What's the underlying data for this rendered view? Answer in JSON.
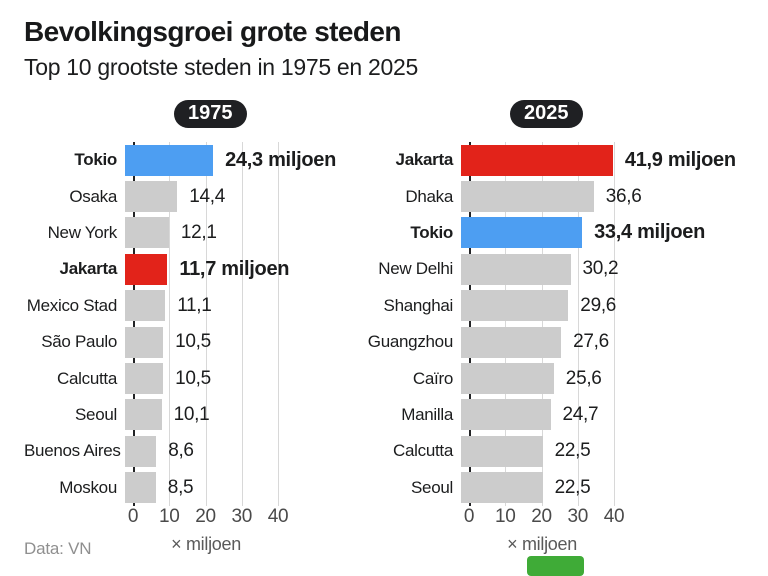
{
  "header": {
    "title": "Bevolkingsgroei grote steden",
    "subtitle": "Top 10 grootste steden in 1975 en 2025"
  },
  "footer": {
    "source": "Data: VN"
  },
  "colors": {
    "blue": "#4d9ef2",
    "red": "#e2231a",
    "gray": "#cccccc",
    "pill_bg": "#1f2023",
    "pill_text": "#ffffff",
    "axis_line": "#222325",
    "gridline": "#d8d8d8",
    "logo_green": "#3fab37"
  },
  "chart_data": [
    {
      "type": "bar",
      "orientation": "horizontal",
      "year_label": "1975",
      "unit_label": "× miljoen",
      "xlim": [
        0,
        40
      ],
      "ticks": [
        0,
        10,
        20,
        30,
        40
      ],
      "grid": true,
      "categories": [
        "Tokio",
        "Osaka",
        "New York",
        "Jakarta",
        "Mexico Stad",
        "São Paulo",
        "Calcutta",
        "Seoul",
        "Buenos Aires",
        "Moskou"
      ],
      "values": [
        24.3,
        14.4,
        12.1,
        11.7,
        11.1,
        10.5,
        10.5,
        10.1,
        8.6,
        8.5
      ],
      "rows": [
        {
          "city": "Tokio",
          "value": 24.3,
          "label": "24,3 miljoen",
          "highlight": "blue"
        },
        {
          "city": "Osaka",
          "value": 14.4,
          "label": "14,4",
          "highlight": null
        },
        {
          "city": "New York",
          "value": 12.1,
          "label": "12,1",
          "highlight": null
        },
        {
          "city": "Jakarta",
          "value": 11.7,
          "label": "11,7 miljoen",
          "highlight": "red"
        },
        {
          "city": "Mexico Stad",
          "value": 11.1,
          "label": "11,1",
          "highlight": null
        },
        {
          "city": "São Paulo",
          "value": 10.5,
          "label": "10,5",
          "highlight": null
        },
        {
          "city": "Calcutta",
          "value": 10.5,
          "label": "10,5",
          "highlight": null
        },
        {
          "city": "Seoul",
          "value": 10.1,
          "label": "10,1",
          "highlight": null
        },
        {
          "city": "Buenos Aires",
          "value": 8.6,
          "label": "8,6",
          "highlight": null
        },
        {
          "city": "Moskou",
          "value": 8.5,
          "label": "8,5",
          "highlight": null
        }
      ]
    },
    {
      "type": "bar",
      "orientation": "horizontal",
      "year_label": "2025",
      "unit_label": "× miljoen",
      "xlim": [
        0,
        40
      ],
      "ticks": [
        0,
        10,
        20,
        30,
        40
      ],
      "grid": true,
      "categories": [
        "Jakarta",
        "Dhaka",
        "Tokio",
        "New Delhi",
        "Shanghai",
        "Guangzhou",
        "Caïro",
        "Manilla",
        "Calcutta",
        "Seoul"
      ],
      "values": [
        41.9,
        36.6,
        33.4,
        30.2,
        29.6,
        27.6,
        25.6,
        24.7,
        22.5,
        22.5
      ],
      "rows": [
        {
          "city": "Jakarta",
          "value": 41.9,
          "label": "41,9 miljoen",
          "highlight": "red"
        },
        {
          "city": "Dhaka",
          "value": 36.6,
          "label": "36,6",
          "highlight": null
        },
        {
          "city": "Tokio",
          "value": 33.4,
          "label": "33,4 miljoen",
          "highlight": "blue"
        },
        {
          "city": "New Delhi",
          "value": 30.2,
          "label": "30,2",
          "highlight": null
        },
        {
          "city": "Shanghai",
          "value": 29.6,
          "label": "29,6",
          "highlight": null
        },
        {
          "city": "Guangzhou",
          "value": 27.6,
          "label": "27,6",
          "highlight": null
        },
        {
          "city": "Caïro",
          "value": 25.6,
          "label": "25,6",
          "highlight": null
        },
        {
          "city": "Manilla",
          "value": 24.7,
          "label": "24,7",
          "highlight": null
        },
        {
          "city": "Calcutta",
          "value": 22.5,
          "label": "22,5",
          "highlight": null
        },
        {
          "city": "Seoul",
          "value": 22.5,
          "label": "22,5",
          "highlight": null
        }
      ]
    }
  ]
}
